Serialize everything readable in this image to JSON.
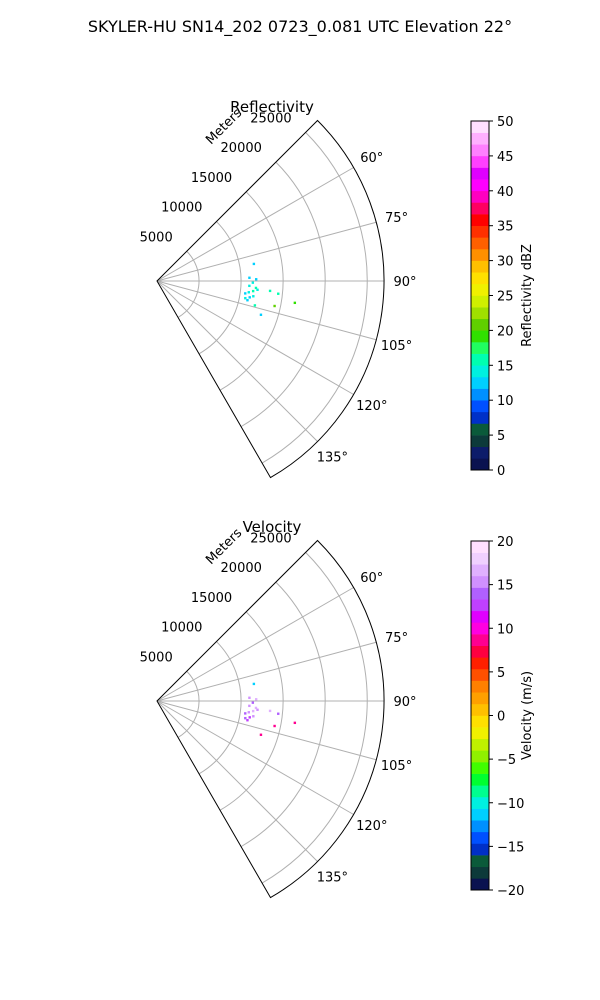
{
  "figure": {
    "title": "SKYLER-HU  SN14_202  0723_0.081 UTC Elevation 22°"
  },
  "chart_data": [
    {
      "type": "polar-sector",
      "title": "Reflectivity",
      "range_label": "Meters",
      "range_max": 27000,
      "range_ticks": [
        5000,
        10000,
        15000,
        20000,
        25000
      ],
      "range_tick_labels": [
        "5000",
        "10000",
        "15000",
        "20000",
        "25000"
      ],
      "theta_min": 45,
      "theta_max": 150,
      "angle_ticks": [
        60,
        75,
        90,
        105,
        120,
        135
      ],
      "angle_tick_labels": [
        "60°",
        "75°",
        "90°",
        "105°",
        "120°",
        "135°"
      ],
      "grid": true,
      "colorbar": {
        "label": "Reflectivity dBZ",
        "min": 0,
        "max": 50,
        "ticks": [
          0,
          5,
          10,
          15,
          20,
          25,
          30,
          35,
          40,
          45,
          50
        ],
        "tick_labels": [
          "0",
          "5",
          "10",
          "15",
          "20",
          "25",
          "30",
          "35",
          "40",
          "45",
          "50"
        ],
        "colors": [
          "#0a1250",
          "#0c1c6a",
          "#0c3a3a",
          "#0a5a3a",
          "#0030c8",
          "#0050ff",
          "#0090ff",
          "#00d0ff",
          "#00f0e0",
          "#00ffb0",
          "#20ff60",
          "#30e000",
          "#60d000",
          "#a0e000",
          "#d0f000",
          "#f0f000",
          "#ffe000",
          "#ffc000",
          "#ff9000",
          "#ff6000",
          "#ff3000",
          "#ff0000",
          "#ff0060",
          "#ff00c0",
          "#ff00ff",
          "#e000ff",
          "#ff40ff",
          "#ff80ff",
          "#ffb0ff",
          "#ffe0ff"
        ]
      },
      "echo_points": [
        {
          "theta": 88,
          "r": 11000,
          "value": 13
        },
        {
          "theta": 89,
          "r": 11800,
          "value": 13
        },
        {
          "theta": 91,
          "r": 11400,
          "value": 14
        },
        {
          "theta": 93,
          "r": 11000,
          "value": 14
        },
        {
          "theta": 94,
          "r": 11800,
          "value": 15
        },
        {
          "theta": 95,
          "r": 12000,
          "value": 14
        },
        {
          "theta": 96,
          "r": 11500,
          "value": 15
        },
        {
          "theta": 97,
          "r": 11000,
          "value": 14
        },
        {
          "theta": 98,
          "r": 10600,
          "value": 13
        },
        {
          "theta": 99,
          "r": 11600,
          "value": 14
        },
        {
          "theta": 100,
          "r": 11200,
          "value": 13
        },
        {
          "theta": 101,
          "r": 10700,
          "value": 14
        },
        {
          "theta": 102,
          "r": 11000,
          "value": 13
        },
        {
          "theta": 95,
          "r": 13500,
          "value": 15
        },
        {
          "theta": 96,
          "r": 14500,
          "value": 16
        },
        {
          "theta": 99,
          "r": 16600,
          "value": 19
        },
        {
          "theta": 102,
          "r": 14300,
          "value": 20
        },
        {
          "theta": 104,
          "r": 12000,
          "value": 16
        },
        {
          "theta": 108,
          "r": 13000,
          "value": 13
        },
        {
          "theta": 80,
          "r": 11700,
          "value": 13
        }
      ]
    },
    {
      "type": "polar-sector",
      "title": "Velocity",
      "range_label": "Meters",
      "range_max": 27000,
      "range_ticks": [
        5000,
        10000,
        15000,
        20000,
        25000
      ],
      "range_tick_labels": [
        "5000",
        "10000",
        "15000",
        "20000",
        "25000"
      ],
      "theta_min": 45,
      "theta_max": 150,
      "angle_ticks": [
        60,
        75,
        90,
        105,
        120,
        135
      ],
      "angle_tick_labels": [
        "60°",
        "75°",
        "90°",
        "105°",
        "120°",
        "135°"
      ],
      "grid": true,
      "colorbar": {
        "label": "Velocity (m/s)",
        "min": -20,
        "max": 20,
        "ticks": [
          -20,
          -15,
          -10,
          -5,
          0,
          5,
          10,
          15,
          20
        ],
        "tick_labels": [
          "−20",
          "−15",
          "−10",
          "−5",
          "0",
          "5",
          "10",
          "15",
          "20"
        ],
        "colors": [
          "#0a1250",
          "#0c3a3a",
          "#0a5a3a",
          "#0030c8",
          "#0050ff",
          "#0090ff",
          "#00d0ff",
          "#00f0e0",
          "#00ff90",
          "#00ff30",
          "#40ff00",
          "#90f000",
          "#c0f000",
          "#f0f000",
          "#ffe000",
          "#ffc000",
          "#ffa000",
          "#ff8000",
          "#ff5000",
          "#ff2000",
          "#ff0040",
          "#ff0090",
          "#ff00e0",
          "#e000ff",
          "#c040ff",
          "#b060ff",
          "#d090ff",
          "#e0b0ff",
          "#f0d0ff",
          "#ffe0ff"
        ]
      },
      "echo_points": [
        {
          "theta": 88,
          "r": 11000,
          "value": 15
        },
        {
          "theta": 89,
          "r": 11800,
          "value": 16
        },
        {
          "theta": 91,
          "r": 11400,
          "value": 14
        },
        {
          "theta": 93,
          "r": 11000,
          "value": 15
        },
        {
          "theta": 94,
          "r": 11800,
          "value": 16
        },
        {
          "theta": 95,
          "r": 12000,
          "value": 15
        },
        {
          "theta": 96,
          "r": 11500,
          "value": 16
        },
        {
          "theta": 97,
          "r": 11000,
          "value": 15
        },
        {
          "theta": 98,
          "r": 10600,
          "value": 14
        },
        {
          "theta": 99,
          "r": 11600,
          "value": 15
        },
        {
          "theta": 100,
          "r": 11200,
          "value": 13
        },
        {
          "theta": 101,
          "r": 10700,
          "value": 14
        },
        {
          "theta": 102,
          "r": 11000,
          "value": 13
        },
        {
          "theta": 95,
          "r": 13500,
          "value": 16
        },
        {
          "theta": 96,
          "r": 14500,
          "value": 14
        },
        {
          "theta": 99,
          "r": 16600,
          "value": 8
        },
        {
          "theta": 102,
          "r": 14300,
          "value": 8
        },
        {
          "theta": 108,
          "r": 13000,
          "value": 8
        },
        {
          "theta": 80,
          "r": 11700,
          "value": -12
        }
      ]
    }
  ]
}
